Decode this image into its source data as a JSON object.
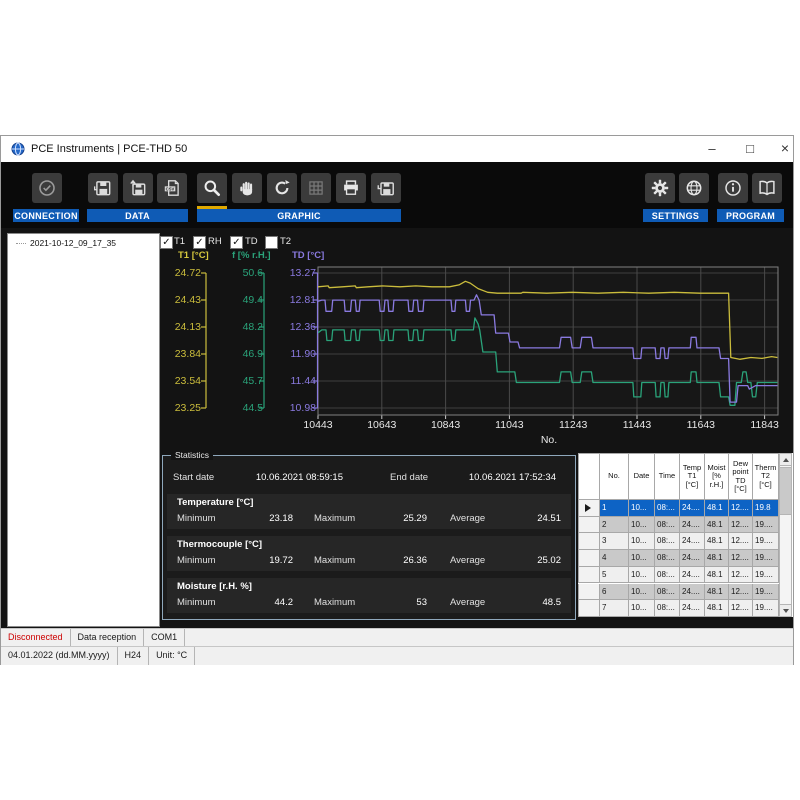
{
  "window": {
    "title": "PCE Instruments | PCE-THD 50",
    "controls": {
      "minimize": "–",
      "maximize": "□",
      "close": "×"
    }
  },
  "toolbar": {
    "groups": [
      {
        "label": "CONNECTION",
        "icons": [
          "check-circle-icon"
        ]
      },
      {
        "label": "DATA",
        "icons": [
          "save-icon",
          "export-icon",
          "csv-file-icon"
        ]
      },
      {
        "label": "GRAPHIC",
        "icons": [
          "zoom-icon",
          "pan-hand-icon",
          "reset-icon",
          "grid-icon",
          "printer-icon",
          "save-graphic-icon"
        ],
        "active_tool": "zoom"
      },
      {
        "label": "SETTINGS",
        "icons": [
          "gear-icon",
          "globe-icon"
        ]
      },
      {
        "label": "PROGRAM",
        "icons": [
          "info-icon",
          "manual-book-icon"
        ]
      }
    ]
  },
  "sidebar": {
    "items": [
      {
        "label": "2021-10-12_09_17_35"
      }
    ]
  },
  "graph": {
    "checkboxes": [
      {
        "label": "T1",
        "checked": true
      },
      {
        "label": "RH",
        "checked": true
      },
      {
        "label": "TD",
        "checked": true
      },
      {
        "label": "T2",
        "checked": false
      }
    ],
    "axis_titles": [
      {
        "text": "T1 [°C]",
        "color": "#d6c83e"
      },
      {
        "text": "f [% r.H.]",
        "color": "#2aa37a"
      },
      {
        "text": "TD [°C]",
        "color": "#8a7ae0"
      }
    ]
  },
  "chart_data": {
    "type": "line",
    "xlabel": "No.",
    "x_ticks": [
      10443,
      10643,
      10843,
      11043,
      11243,
      11443,
      11643,
      11843
    ],
    "x_range": [
      10443,
      11885
    ],
    "grid": true,
    "axes": [
      {
        "name": "T1 [°C]",
        "color": "#cbbd3c",
        "ticks": [
          "24.72",
          "24.43",
          "24.13",
          "23.84",
          "23.54",
          "23.25"
        ],
        "range": [
          23.25,
          24.72
        ]
      },
      {
        "name": "f [% r.H.]",
        "color": "#2aa37a",
        "ticks": [
          "50.6",
          "49.4",
          "48.2",
          "46.9",
          "45.7",
          "44.5"
        ],
        "range": [
          44.5,
          50.6
        ]
      },
      {
        "name": "TD [°C]",
        "color": "#8a7ae0",
        "ticks": [
          "13.27",
          "12.81",
          "12.36",
          "11.90",
          "11.44",
          "10.98"
        ],
        "range": [
          10.98,
          13.27
        ]
      }
    ],
    "series": [
      {
        "name": "T1",
        "axis": 0,
        "color": "#cbbd3c",
        "points": [
          [
            10443,
            24.57
          ],
          [
            10475,
            24.58
          ],
          [
            10478,
            24.56
          ],
          [
            10520,
            24.57
          ],
          [
            10560,
            24.58
          ],
          [
            10563,
            24.56
          ],
          [
            10600,
            24.57
          ],
          [
            10645,
            24.58
          ],
          [
            10700,
            24.57
          ],
          [
            10750,
            24.58
          ],
          [
            10800,
            24.57
          ],
          [
            10855,
            24.57
          ],
          [
            10885,
            24.59
          ],
          [
            10905,
            24.63
          ],
          [
            10920,
            24.61
          ],
          [
            10945,
            24.55
          ],
          [
            10975,
            24.51
          ],
          [
            11005,
            24.5
          ],
          [
            11080,
            24.5
          ],
          [
            11085,
            24.51
          ],
          [
            11160,
            24.5
          ],
          [
            11240,
            24.51
          ],
          [
            11320,
            24.5
          ],
          [
            11400,
            24.51
          ],
          [
            11480,
            24.5
          ],
          [
            11560,
            24.51
          ],
          [
            11640,
            24.5
          ],
          [
            11730,
            24.5
          ],
          [
            11737,
            23.8
          ],
          [
            11765,
            23.78
          ],
          [
            11800,
            23.8
          ],
          [
            11835,
            23.79
          ],
          [
            11865,
            23.81
          ],
          [
            11883,
            23.8
          ]
        ]
      },
      {
        "name": "RH",
        "axis": 1,
        "color": "#2aa37a",
        "points": [
          [
            10443,
            47.9
          ],
          [
            10455,
            48.03
          ],
          [
            10468,
            48.03
          ],
          [
            10471,
            47.55
          ],
          [
            10486,
            47.55
          ],
          [
            10489,
            48.03
          ],
          [
            10525,
            48.03
          ],
          [
            10528,
            47.55
          ],
          [
            10545,
            47.55
          ],
          [
            10548,
            48.03
          ],
          [
            10560,
            48.03
          ],
          [
            10563,
            47.55
          ],
          [
            10572,
            47.55
          ],
          [
            10575,
            48.03
          ],
          [
            10635,
            48.03
          ],
          [
            10638,
            47.55
          ],
          [
            10650,
            47.55
          ],
          [
            10653,
            48.03
          ],
          [
            10662,
            48.03
          ],
          [
            10665,
            47.55
          ],
          [
            10678,
            47.55
          ],
          [
            10681,
            48.03
          ],
          [
            10725,
            48.03
          ],
          [
            10728,
            47.55
          ],
          [
            10740,
            47.55
          ],
          [
            10743,
            48.03
          ],
          [
            10755,
            48.03
          ],
          [
            10758,
            47.55
          ],
          [
            10772,
            47.55
          ],
          [
            10775,
            48.03
          ],
          [
            10860,
            48.03
          ],
          [
            10863,
            47.55
          ],
          [
            10872,
            47.55
          ],
          [
            10875,
            48.03
          ],
          [
            10930,
            48.03
          ],
          [
            10935,
            48.57
          ],
          [
            10945,
            48.3
          ],
          [
            10950,
            48.03
          ],
          [
            10960,
            47.03
          ],
          [
            11000,
            47.03
          ],
          [
            11005,
            46.13
          ],
          [
            11060,
            46.13
          ],
          [
            11065,
            45.65
          ],
          [
            11200,
            45.65
          ],
          [
            11205,
            46.13
          ],
          [
            11235,
            46.13
          ],
          [
            11240,
            45.65
          ],
          [
            11265,
            45.65
          ],
          [
            11270,
            46.13
          ],
          [
            11300,
            46.13
          ],
          [
            11305,
            45.65
          ],
          [
            11430,
            45.65
          ],
          [
            11433,
            45.0
          ],
          [
            11455,
            45.0
          ],
          [
            11458,
            45.65
          ],
          [
            11500,
            45.65
          ],
          [
            11503,
            45.0
          ],
          [
            11515,
            45.0
          ],
          [
            11518,
            45.65
          ],
          [
            11528,
            45.65
          ],
          [
            11531,
            45.0
          ],
          [
            11540,
            45.0
          ],
          [
            11543,
            45.65
          ],
          [
            11610,
            45.65
          ],
          [
            11613,
            46.13
          ],
          [
            11628,
            46.13
          ],
          [
            11631,
            45.65
          ],
          [
            11700,
            45.65
          ],
          [
            11705,
            45.0
          ],
          [
            11730,
            45.0
          ],
          [
            11735,
            44.62
          ],
          [
            11750,
            44.62
          ],
          [
            11755,
            45.65
          ],
          [
            11770,
            45.65
          ],
          [
            11775,
            46.13
          ],
          [
            11785,
            46.13
          ],
          [
            11790,
            45.65
          ],
          [
            11800,
            45.65
          ],
          [
            11805,
            45.0
          ],
          [
            11815,
            45.0
          ],
          [
            11820,
            45.65
          ],
          [
            11883,
            45.65
          ]
        ]
      },
      {
        "name": "TD",
        "axis": 2,
        "color": "#8a7ae0",
        "points": [
          [
            10443,
            12.79
          ],
          [
            10455,
            12.81
          ],
          [
            10465,
            12.81
          ],
          [
            10468,
            12.62
          ],
          [
            10486,
            12.62
          ],
          [
            10489,
            12.81
          ],
          [
            10525,
            12.81
          ],
          [
            10528,
            12.62
          ],
          [
            10545,
            12.62
          ],
          [
            10548,
            12.81
          ],
          [
            10560,
            12.81
          ],
          [
            10563,
            12.62
          ],
          [
            10572,
            12.62
          ],
          [
            10575,
            12.81
          ],
          [
            10635,
            12.81
          ],
          [
            10638,
            12.62
          ],
          [
            10650,
            12.62
          ],
          [
            10653,
            12.81
          ],
          [
            10662,
            12.81
          ],
          [
            10665,
            12.62
          ],
          [
            10678,
            12.62
          ],
          [
            10681,
            12.81
          ],
          [
            10725,
            12.81
          ],
          [
            10728,
            12.62
          ],
          [
            10740,
            12.62
          ],
          [
            10743,
            12.81
          ],
          [
            10755,
            12.81
          ],
          [
            10758,
            12.62
          ],
          [
            10772,
            12.62
          ],
          [
            10775,
            12.81
          ],
          [
            10860,
            12.81
          ],
          [
            10863,
            12.62
          ],
          [
            10872,
            12.62
          ],
          [
            10875,
            12.81
          ],
          [
            10905,
            12.81
          ],
          [
            10908,
            12.62
          ],
          [
            10918,
            12.62
          ],
          [
            10921,
            12.81
          ],
          [
            10932,
            12.81
          ],
          [
            10940,
            12.9
          ],
          [
            10948,
            12.81
          ],
          [
            10955,
            12.56
          ],
          [
            10995,
            12.56
          ],
          [
            11000,
            12.25
          ],
          [
            11040,
            12.25
          ],
          [
            11045,
            12.1
          ],
          [
            11070,
            12.1
          ],
          [
            11075,
            12.0
          ],
          [
            11200,
            12.0
          ],
          [
            11205,
            12.18
          ],
          [
            11235,
            12.18
          ],
          [
            11240,
            12.0
          ],
          [
            11265,
            12.0
          ],
          [
            11270,
            12.18
          ],
          [
            11300,
            12.18
          ],
          [
            11305,
            12.0
          ],
          [
            11430,
            12.0
          ],
          [
            11433,
            11.82
          ],
          [
            11455,
            11.82
          ],
          [
            11458,
            12.0
          ],
          [
            11500,
            12.0
          ],
          [
            11503,
            11.82
          ],
          [
            11515,
            11.82
          ],
          [
            11518,
            12.0
          ],
          [
            11528,
            12.0
          ],
          [
            11531,
            11.82
          ],
          [
            11540,
            11.82
          ],
          [
            11543,
            12.0
          ],
          [
            11610,
            12.0
          ],
          [
            11613,
            12.18
          ],
          [
            11628,
            12.18
          ],
          [
            11631,
            12.0
          ],
          [
            11700,
            12.0
          ],
          [
            11705,
            11.82
          ],
          [
            11730,
            11.82
          ],
          [
            11735,
            11.08
          ],
          [
            11755,
            11.08
          ],
          [
            11760,
            11.36
          ],
          [
            11790,
            11.36
          ],
          [
            11795,
            11.3
          ],
          [
            11815,
            11.36
          ],
          [
            11883,
            11.36
          ]
        ]
      }
    ]
  },
  "statistics": {
    "title": "Statistics",
    "start_label": "Start date",
    "start_value": "10.06.2021 08:59:15",
    "end_label": "End date",
    "end_value": "10.06.2021 17:52:34",
    "labels": {
      "min": "Minimum",
      "max": "Maximum",
      "avg": "Average"
    },
    "sections": [
      {
        "name": "Temperature [°C]",
        "min": "23.18",
        "max": "25.29",
        "avg": "24.51"
      },
      {
        "name": "Thermocouple [°C]",
        "min": "19.72",
        "max": "26.36",
        "avg": "25.02"
      },
      {
        "name": "Moisture [r.H. %]",
        "min": "44.2",
        "max": "53",
        "avg": "48.5"
      }
    ]
  },
  "table": {
    "headers": [
      [
        "No."
      ],
      [
        "Date"
      ],
      [
        "Time"
      ],
      [
        "Temp",
        "T1",
        "[°C]"
      ],
      [
        "Moist",
        "[%",
        "r.H.]"
      ],
      [
        "Dew",
        "point",
        "TD",
        "[°C]"
      ],
      [
        "Therm",
        "T2",
        "[°C]"
      ]
    ],
    "rows": [
      [
        "1",
        "10...",
        "08:...",
        "24....",
        "48.1",
        "12....",
        "19.8"
      ],
      [
        "2",
        "10...",
        "08:...",
        "24....",
        "48.1",
        "12....",
        "19...."
      ],
      [
        "3",
        "10...",
        "08:...",
        "24....",
        "48.1",
        "12....",
        "19...."
      ],
      [
        "4",
        "10...",
        "08:...",
        "24....",
        "48.1",
        "12....",
        "19...."
      ],
      [
        "5",
        "10...",
        "08:...",
        "24....",
        "48.1",
        "12....",
        "19...."
      ],
      [
        "6",
        "10...",
        "08:...",
        "24....",
        "48.1",
        "12....",
        "19...."
      ],
      [
        "7",
        "10...",
        "08:...",
        "24....",
        "48.1",
        "12....",
        "19...."
      ]
    ],
    "selected_row": 0
  },
  "statusbar1": [
    {
      "text": "Disconnected",
      "color": "#cc0000"
    },
    {
      "text": "Data reception"
    },
    {
      "text": "COM1"
    }
  ],
  "statusbar2": [
    {
      "text": "04.01.2022 (dd.MM.yyyy)"
    },
    {
      "text": "H24"
    },
    {
      "text": "Unit: °C"
    }
  ]
}
